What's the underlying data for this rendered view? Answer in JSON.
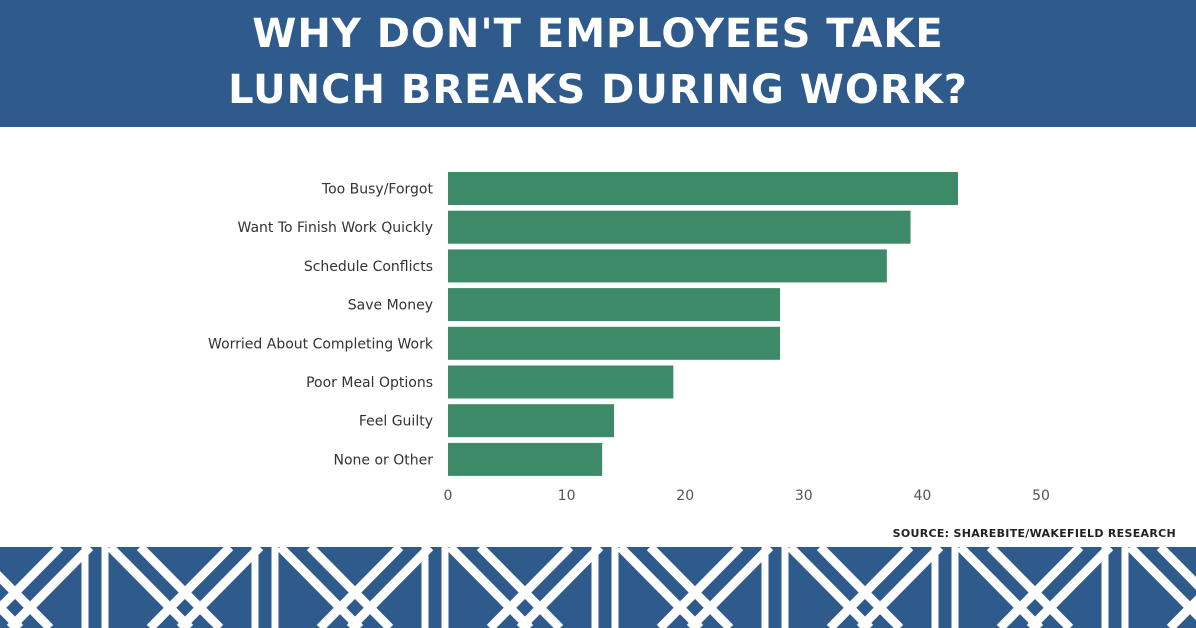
{
  "header": {
    "title_line1": "WHY DON'T EMPLOYEES TAKE",
    "title_line2": "LUNCH BREAKS DURING WORK?"
  },
  "source": "SOURCE: SHAREBITE/WAKEFIELD RESEARCH",
  "colors": {
    "header_bg": "#2e5a8c",
    "bar": "#3d8a68",
    "footer_pattern": "#ffffff"
  },
  "chart_data": {
    "type": "bar",
    "orientation": "horizontal",
    "title": "WHY DON'T EMPLOYEES TAKE LUNCH BREAKS DURING WORK?",
    "categories": [
      "Too Busy/Forgot",
      "Want To Finish Work Quickly",
      "Schedule Conflicts",
      "Save Money",
      "Worried About Completing Work",
      "Poor Meal Options",
      "Feel Guilty",
      "None or Other"
    ],
    "values": [
      43,
      39,
      37,
      28,
      28,
      19,
      14,
      13
    ],
    "xlim": [
      0,
      50
    ],
    "xticks": [
      0,
      10,
      20,
      30,
      40,
      50
    ],
    "xlabel": "",
    "ylabel": "",
    "grid": false,
    "legend": "none"
  }
}
